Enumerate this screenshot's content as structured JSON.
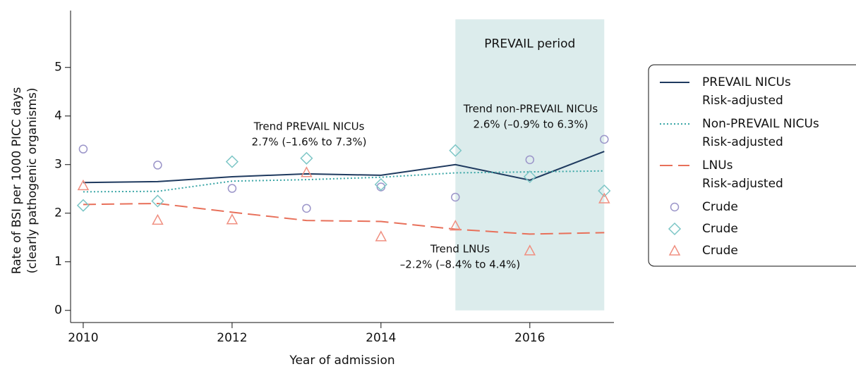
{
  "chart_data": {
    "type": "line",
    "x": [
      2010,
      2011,
      2012,
      2013,
      2014,
      2015,
      2016,
      2017
    ],
    "xlim": [
      2009.83,
      2017.13
    ],
    "xticks": [
      2010,
      2012,
      2014,
      2016
    ],
    "ylim": [
      -0.25,
      6.17
    ],
    "yticks": [
      0,
      1,
      2,
      3,
      4,
      5
    ],
    "xlabel": "Year of admission",
    "ylabel": [
      "Rate of BSI per 1000 PICC days",
      "(clearly pathogenic organisms)"
    ],
    "shaded_period": {
      "label": "PREVAIL period",
      "x": [
        2015,
        2017
      ],
      "y": [
        0,
        5.99
      ],
      "color": "#dcecec"
    },
    "series": [
      {
        "name": "PREVAIL NICUs",
        "sublabel": "Risk-adjusted",
        "style": "solid",
        "color": "#1f3a5f",
        "values": [
          2.63,
          2.65,
          2.75,
          2.81,
          2.78,
          3.0,
          2.68,
          3.27
        ]
      },
      {
        "name": "Non-PREVAIL NICUs",
        "sublabel": "Risk-adjusted",
        "style": "dotted",
        "color": "#3aa6a6",
        "values": [
          2.44,
          2.45,
          2.66,
          2.69,
          2.74,
          2.83,
          2.85,
          2.87
        ]
      },
      {
        "name": "LNUs",
        "sublabel": "Risk-adjusted",
        "style": "dashed",
        "color": "#e8705a",
        "values": [
          2.18,
          2.2,
          2.02,
          1.85,
          1.83,
          1.67,
          1.57,
          1.6
        ]
      },
      {
        "name": "Crude",
        "marker": "circle",
        "color": "#9b95c9",
        "values": [
          3.32,
          2.99,
          2.51,
          2.1,
          2.54,
          2.33,
          3.1,
          3.52
        ]
      },
      {
        "name": "Crude",
        "marker": "diamond",
        "color": "#7cc6c6",
        "values": [
          2.16,
          2.25,
          3.06,
          3.13,
          2.59,
          3.29,
          2.75,
          2.46
        ]
      },
      {
        "name": "Crude",
        "marker": "triangle",
        "color": "#f08f80",
        "values": [
          2.57,
          1.86,
          1.87,
          2.84,
          1.52,
          1.74,
          1.23,
          2.3
        ]
      }
    ],
    "annotations": [
      [
        "Trend PREVAIL NICUs",
        "2.7% (–1.6% to 7.3%)"
      ],
      [
        "Trend non-PREVAIL NICUs",
        "2.6% (–0.9% to 6.3%)"
      ],
      [
        "Trend LNUs",
        "–2.2% (–8.4% to 4.4%)"
      ]
    ]
  }
}
